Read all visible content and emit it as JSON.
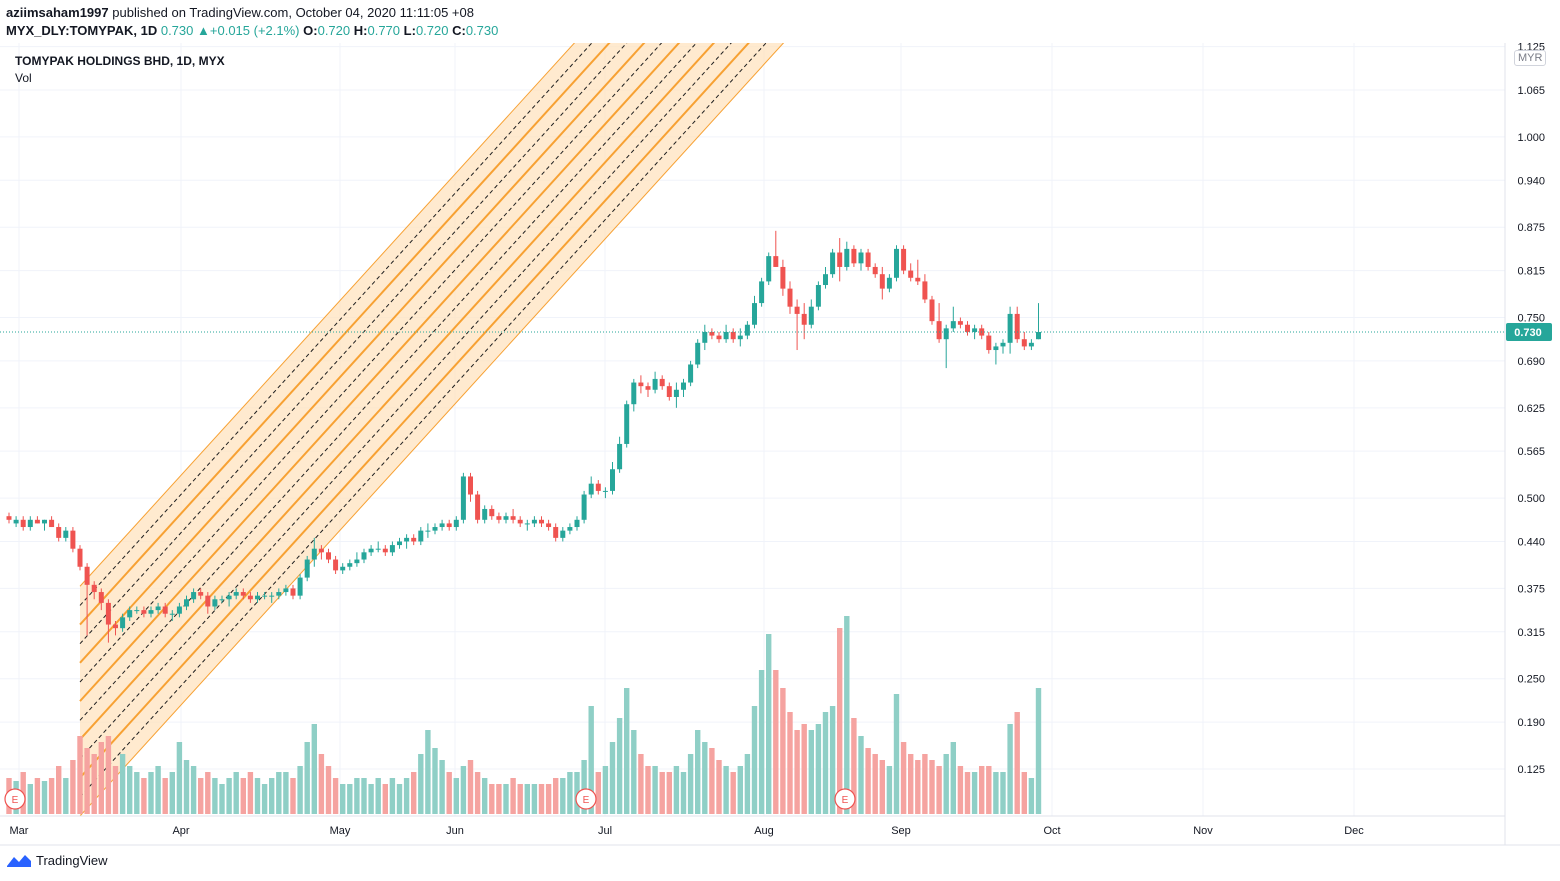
{
  "header": {
    "author": "aziimsaham1997",
    "published_text": "published on TradingView.com, October 04, 2020 11:11:05 +08",
    "symbol": "MYX_DLY:TOMYPAK, 1D",
    "last": "0.730",
    "change": "+0.015 (+2.1%)",
    "o_label": "O:",
    "o_value": "0.720",
    "h_label": "H:",
    "h_value": "0.770",
    "l_label": "L:",
    "l_value": "0.720",
    "c_label": "C:",
    "c_value": "0.730"
  },
  "legend": {
    "title": "TOMYPAK HOLDINGS BHD, 1D, MYX",
    "volume_label": "Vol"
  },
  "currency": "MYR",
  "footer": {
    "brand": "TradingView"
  },
  "colors": {
    "up": "#26a69a",
    "down": "#ef5350",
    "vol_up": "#8fcfc6",
    "vol_down": "#f5a3a0",
    "channel_fill": "#ffe3bf",
    "channel_line": "#f7a133",
    "dashed": "#1f1f1f",
    "price_tag": "#26a69a"
  },
  "chart_data": {
    "type": "candlestick",
    "title": "TOMYPAK HOLDINGS BHD, 1D, MYX",
    "y_ticks": [
      "1.125",
      "1.065",
      "1.000",
      "0.940",
      "0.875",
      "0.815",
      "0.750",
      "0.690",
      "0.625",
      "0.565",
      "0.500",
      "0.440",
      "0.375",
      "0.315",
      "0.250",
      "0.190",
      "0.125"
    ],
    "x_ticks": [
      "Mar",
      "Apr",
      "May",
      "Jun",
      "Jul",
      "Aug",
      "Sep",
      "Oct",
      "Nov",
      "Dec"
    ],
    "ylim": [
      0.06,
      1.13
    ],
    "last_price": 0.73,
    "last_price_label": "0.730",
    "earnings_marker": "E",
    "earnings_markers": [
      2,
      82,
      120
    ],
    "channel": {
      "start_index": 10,
      "start_price": 0.06,
      "slope": 0.0108,
      "offsets": [
        0.0,
        0.0265,
        0.053,
        0.0795,
        0.106,
        0.1325,
        0.159,
        0.1855,
        0.212,
        0.2385,
        0.265,
        0.2915,
        0.318
      ],
      "line_styles": [
        "edge",
        "dash",
        "solid",
        "dash",
        "solid",
        "dash",
        "solid",
        "dash",
        "solid",
        "dash",
        "solid",
        "dash",
        "edge"
      ]
    },
    "candles": [
      {
        "o": 0.475,
        "h": 0.48,
        "l": 0.465,
        "c": 0.47,
        "v": 0.06
      },
      {
        "o": 0.465,
        "h": 0.475,
        "l": 0.46,
        "c": 0.47,
        "v": 0.055
      },
      {
        "o": 0.47,
        "h": 0.475,
        "l": 0.455,
        "c": 0.46,
        "v": 0.07
      },
      {
        "o": 0.46,
        "h": 0.475,
        "l": 0.455,
        "c": 0.47,
        "v": 0.05
      },
      {
        "o": 0.47,
        "h": 0.475,
        "l": 0.465,
        "c": 0.465,
        "v": 0.06
      },
      {
        "o": 0.465,
        "h": 0.47,
        "l": 0.455,
        "c": 0.47,
        "v": 0.055
      },
      {
        "o": 0.47,
        "h": 0.475,
        "l": 0.46,
        "c": 0.46,
        "v": 0.06
      },
      {
        "o": 0.46,
        "h": 0.465,
        "l": 0.44,
        "c": 0.445,
        "v": 0.08
      },
      {
        "o": 0.445,
        "h": 0.46,
        "l": 0.44,
        "c": 0.455,
        "v": 0.06
      },
      {
        "o": 0.455,
        "h": 0.46,
        "l": 0.425,
        "c": 0.43,
        "v": 0.09
      },
      {
        "o": 0.43,
        "h": 0.435,
        "l": 0.4,
        "c": 0.405,
        "v": 0.13
      },
      {
        "o": 0.405,
        "h": 0.41,
        "l": 0.31,
        "c": 0.38,
        "v": 0.11
      },
      {
        "o": 0.38,
        "h": 0.385,
        "l": 0.36,
        "c": 0.37,
        "v": 0.1
      },
      {
        "o": 0.37,
        "h": 0.375,
        "l": 0.345,
        "c": 0.355,
        "v": 0.12
      },
      {
        "o": 0.355,
        "h": 0.36,
        "l": 0.3,
        "c": 0.325,
        "v": 0.13
      },
      {
        "o": 0.325,
        "h": 0.33,
        "l": 0.31,
        "c": 0.32,
        "v": 0.08
      },
      {
        "o": 0.32,
        "h": 0.34,
        "l": 0.315,
        "c": 0.335,
        "v": 0.1
      },
      {
        "o": 0.335,
        "h": 0.35,
        "l": 0.33,
        "c": 0.345,
        "v": 0.08
      },
      {
        "o": 0.345,
        "h": 0.35,
        "l": 0.34,
        "c": 0.345,
        "v": 0.07
      },
      {
        "o": 0.345,
        "h": 0.35,
        "l": 0.335,
        "c": 0.34,
        "v": 0.06
      },
      {
        "o": 0.34,
        "h": 0.35,
        "l": 0.335,
        "c": 0.345,
        "v": 0.07
      },
      {
        "o": 0.345,
        "h": 0.355,
        "l": 0.34,
        "c": 0.35,
        "v": 0.08
      },
      {
        "o": 0.35,
        "h": 0.355,
        "l": 0.335,
        "c": 0.34,
        "v": 0.06
      },
      {
        "o": 0.34,
        "h": 0.345,
        "l": 0.33,
        "c": 0.34,
        "v": 0.07
      },
      {
        "o": 0.34,
        "h": 0.355,
        "l": 0.335,
        "c": 0.35,
        "v": 0.12
      },
      {
        "o": 0.35,
        "h": 0.365,
        "l": 0.345,
        "c": 0.36,
        "v": 0.09
      },
      {
        "o": 0.36,
        "h": 0.375,
        "l": 0.355,
        "c": 0.37,
        "v": 0.08
      },
      {
        "o": 0.37,
        "h": 0.375,
        "l": 0.36,
        "c": 0.365,
        "v": 0.06
      },
      {
        "o": 0.365,
        "h": 0.37,
        "l": 0.34,
        "c": 0.35,
        "v": 0.07
      },
      {
        "o": 0.35,
        "h": 0.365,
        "l": 0.345,
        "c": 0.36,
        "v": 0.06
      },
      {
        "o": 0.36,
        "h": 0.365,
        "l": 0.355,
        "c": 0.36,
        "v": 0.05
      },
      {
        "o": 0.36,
        "h": 0.37,
        "l": 0.35,
        "c": 0.365,
        "v": 0.06
      },
      {
        "o": 0.365,
        "h": 0.375,
        "l": 0.36,
        "c": 0.37,
        "v": 0.07
      },
      {
        "o": 0.37,
        "h": 0.375,
        "l": 0.36,
        "c": 0.365,
        "v": 0.06
      },
      {
        "o": 0.365,
        "h": 0.37,
        "l": 0.355,
        "c": 0.36,
        "v": 0.07
      },
      {
        "o": 0.36,
        "h": 0.37,
        "l": 0.355,
        "c": 0.365,
        "v": 0.06
      },
      {
        "o": 0.365,
        "h": 0.37,
        "l": 0.36,
        "c": 0.365,
        "v": 0.05
      },
      {
        "o": 0.365,
        "h": 0.37,
        "l": 0.355,
        "c": 0.365,
        "v": 0.06
      },
      {
        "o": 0.365,
        "h": 0.375,
        "l": 0.36,
        "c": 0.37,
        "v": 0.07
      },
      {
        "o": 0.37,
        "h": 0.38,
        "l": 0.365,
        "c": 0.375,
        "v": 0.07
      },
      {
        "o": 0.375,
        "h": 0.38,
        "l": 0.36,
        "c": 0.365,
        "v": 0.06
      },
      {
        "o": 0.365,
        "h": 0.395,
        "l": 0.36,
        "c": 0.39,
        "v": 0.08
      },
      {
        "o": 0.39,
        "h": 0.42,
        "l": 0.385,
        "c": 0.415,
        "v": 0.12
      },
      {
        "o": 0.415,
        "h": 0.445,
        "l": 0.405,
        "c": 0.43,
        "v": 0.15
      },
      {
        "o": 0.43,
        "h": 0.435,
        "l": 0.415,
        "c": 0.425,
        "v": 0.1
      },
      {
        "o": 0.425,
        "h": 0.43,
        "l": 0.41,
        "c": 0.415,
        "v": 0.08
      },
      {
        "o": 0.415,
        "h": 0.42,
        "l": 0.395,
        "c": 0.4,
        "v": 0.06
      },
      {
        "o": 0.4,
        "h": 0.41,
        "l": 0.395,
        "c": 0.405,
        "v": 0.05
      },
      {
        "o": 0.405,
        "h": 0.415,
        "l": 0.4,
        "c": 0.41,
        "v": 0.05
      },
      {
        "o": 0.41,
        "h": 0.425,
        "l": 0.405,
        "c": 0.415,
        "v": 0.06
      },
      {
        "o": 0.415,
        "h": 0.43,
        "l": 0.41,
        "c": 0.425,
        "v": 0.06
      },
      {
        "o": 0.425,
        "h": 0.435,
        "l": 0.42,
        "c": 0.43,
        "v": 0.05
      },
      {
        "o": 0.43,
        "h": 0.44,
        "l": 0.425,
        "c": 0.43,
        "v": 0.06
      },
      {
        "o": 0.43,
        "h": 0.435,
        "l": 0.42,
        "c": 0.425,
        "v": 0.05
      },
      {
        "o": 0.425,
        "h": 0.44,
        "l": 0.42,
        "c": 0.435,
        "v": 0.06
      },
      {
        "o": 0.435,
        "h": 0.445,
        "l": 0.43,
        "c": 0.44,
        "v": 0.05
      },
      {
        "o": 0.44,
        "h": 0.45,
        "l": 0.43,
        "c": 0.445,
        "v": 0.06
      },
      {
        "o": 0.445,
        "h": 0.45,
        "l": 0.435,
        "c": 0.44,
        "v": 0.07
      },
      {
        "o": 0.44,
        "h": 0.46,
        "l": 0.435,
        "c": 0.455,
        "v": 0.1
      },
      {
        "o": 0.455,
        "h": 0.465,
        "l": 0.445,
        "c": 0.455,
        "v": 0.14
      },
      {
        "o": 0.455,
        "h": 0.465,
        "l": 0.45,
        "c": 0.46,
        "v": 0.11
      },
      {
        "o": 0.46,
        "h": 0.47,
        "l": 0.455,
        "c": 0.465,
        "v": 0.09
      },
      {
        "o": 0.465,
        "h": 0.47,
        "l": 0.455,
        "c": 0.46,
        "v": 0.07
      },
      {
        "o": 0.46,
        "h": 0.475,
        "l": 0.455,
        "c": 0.47,
        "v": 0.06
      },
      {
        "o": 0.47,
        "h": 0.535,
        "l": 0.465,
        "c": 0.53,
        "v": 0.08
      },
      {
        "o": 0.53,
        "h": 0.535,
        "l": 0.495,
        "c": 0.505,
        "v": 0.09
      },
      {
        "o": 0.505,
        "h": 0.51,
        "l": 0.465,
        "c": 0.47,
        "v": 0.07
      },
      {
        "o": 0.47,
        "h": 0.49,
        "l": 0.465,
        "c": 0.485,
        "v": 0.06
      },
      {
        "o": 0.485,
        "h": 0.49,
        "l": 0.47,
        "c": 0.475,
        "v": 0.05
      },
      {
        "o": 0.475,
        "h": 0.48,
        "l": 0.465,
        "c": 0.47,
        "v": 0.05
      },
      {
        "o": 0.47,
        "h": 0.48,
        "l": 0.465,
        "c": 0.475,
        "v": 0.05
      },
      {
        "o": 0.475,
        "h": 0.485,
        "l": 0.465,
        "c": 0.47,
        "v": 0.06
      },
      {
        "o": 0.47,
        "h": 0.475,
        "l": 0.46,
        "c": 0.465,
        "v": 0.05
      },
      {
        "o": 0.465,
        "h": 0.47,
        "l": 0.455,
        "c": 0.465,
        "v": 0.05
      },
      {
        "o": 0.465,
        "h": 0.475,
        "l": 0.46,
        "c": 0.47,
        "v": 0.05
      },
      {
        "o": 0.47,
        "h": 0.475,
        "l": 0.46,
        "c": 0.465,
        "v": 0.05
      },
      {
        "o": 0.465,
        "h": 0.47,
        "l": 0.455,
        "c": 0.46,
        "v": 0.05
      },
      {
        "o": 0.46,
        "h": 0.465,
        "l": 0.44,
        "c": 0.445,
        "v": 0.06
      },
      {
        "o": 0.445,
        "h": 0.46,
        "l": 0.44,
        "c": 0.455,
        "v": 0.06
      },
      {
        "o": 0.455,
        "h": 0.465,
        "l": 0.45,
        "c": 0.46,
        "v": 0.07
      },
      {
        "o": 0.46,
        "h": 0.475,
        "l": 0.455,
        "c": 0.47,
        "v": 0.07
      },
      {
        "o": 0.47,
        "h": 0.51,
        "l": 0.465,
        "c": 0.505,
        "v": 0.09
      },
      {
        "o": 0.505,
        "h": 0.53,
        "l": 0.5,
        "c": 0.52,
        "v": 0.18
      },
      {
        "o": 0.52,
        "h": 0.525,
        "l": 0.505,
        "c": 0.51,
        "v": 0.07
      },
      {
        "o": 0.51,
        "h": 0.515,
        "l": 0.5,
        "c": 0.51,
        "v": 0.08
      },
      {
        "o": 0.51,
        "h": 0.55,
        "l": 0.505,
        "c": 0.54,
        "v": 0.12
      },
      {
        "o": 0.54,
        "h": 0.585,
        "l": 0.535,
        "c": 0.575,
        "v": 0.16
      },
      {
        "o": 0.575,
        "h": 0.635,
        "l": 0.57,
        "c": 0.63,
        "v": 0.21
      },
      {
        "o": 0.63,
        "h": 0.665,
        "l": 0.62,
        "c": 0.66,
        "v": 0.14
      },
      {
        "o": 0.66,
        "h": 0.67,
        "l": 0.645,
        "c": 0.655,
        "v": 0.1
      },
      {
        "o": 0.655,
        "h": 0.66,
        "l": 0.64,
        "c": 0.65,
        "v": 0.08
      },
      {
        "o": 0.65,
        "h": 0.675,
        "l": 0.645,
        "c": 0.665,
        "v": 0.08
      },
      {
        "o": 0.665,
        "h": 0.67,
        "l": 0.65,
        "c": 0.655,
        "v": 0.07
      },
      {
        "o": 0.655,
        "h": 0.66,
        "l": 0.635,
        "c": 0.64,
        "v": 0.07
      },
      {
        "o": 0.64,
        "h": 0.66,
        "l": 0.625,
        "c": 0.65,
        "v": 0.08
      },
      {
        "o": 0.65,
        "h": 0.665,
        "l": 0.64,
        "c": 0.66,
        "v": 0.07
      },
      {
        "o": 0.66,
        "h": 0.69,
        "l": 0.655,
        "c": 0.685,
        "v": 0.1
      },
      {
        "o": 0.685,
        "h": 0.72,
        "l": 0.68,
        "c": 0.715,
        "v": 0.14
      },
      {
        "o": 0.715,
        "h": 0.74,
        "l": 0.705,
        "c": 0.73,
        "v": 0.12
      },
      {
        "o": 0.73,
        "h": 0.735,
        "l": 0.72,
        "c": 0.725,
        "v": 0.11
      },
      {
        "o": 0.725,
        "h": 0.73,
        "l": 0.715,
        "c": 0.72,
        "v": 0.09
      },
      {
        "o": 0.72,
        "h": 0.74,
        "l": 0.715,
        "c": 0.73,
        "v": 0.08
      },
      {
        "o": 0.73,
        "h": 0.735,
        "l": 0.715,
        "c": 0.72,
        "v": 0.07
      },
      {
        "o": 0.72,
        "h": 0.735,
        "l": 0.71,
        "c": 0.725,
        "v": 0.08
      },
      {
        "o": 0.725,
        "h": 0.745,
        "l": 0.72,
        "c": 0.74,
        "v": 0.1
      },
      {
        "o": 0.74,
        "h": 0.78,
        "l": 0.735,
        "c": 0.77,
        "v": 0.18
      },
      {
        "o": 0.77,
        "h": 0.805,
        "l": 0.765,
        "c": 0.8,
        "v": 0.24
      },
      {
        "o": 0.8,
        "h": 0.84,
        "l": 0.795,
        "c": 0.835,
        "v": 0.3
      },
      {
        "o": 0.835,
        "h": 0.87,
        "l": 0.82,
        "c": 0.82,
        "v": 0.24
      },
      {
        "o": 0.82,
        "h": 0.83,
        "l": 0.78,
        "c": 0.79,
        "v": 0.21
      },
      {
        "o": 0.79,
        "h": 0.8,
        "l": 0.755,
        "c": 0.765,
        "v": 0.17
      },
      {
        "o": 0.765,
        "h": 0.775,
        "l": 0.705,
        "c": 0.755,
        "v": 0.14
      },
      {
        "o": 0.755,
        "h": 0.77,
        "l": 0.72,
        "c": 0.74,
        "v": 0.15
      },
      {
        "o": 0.74,
        "h": 0.775,
        "l": 0.735,
        "c": 0.765,
        "v": 0.14
      },
      {
        "o": 0.765,
        "h": 0.8,
        "l": 0.76,
        "c": 0.795,
        "v": 0.15
      },
      {
        "o": 0.795,
        "h": 0.82,
        "l": 0.79,
        "c": 0.81,
        "v": 0.17
      },
      {
        "o": 0.81,
        "h": 0.845,
        "l": 0.805,
        "c": 0.84,
        "v": 0.18
      },
      {
        "o": 0.84,
        "h": 0.86,
        "l": 0.8,
        "c": 0.82,
        "v": 0.31
      },
      {
        "o": 0.82,
        "h": 0.855,
        "l": 0.815,
        "c": 0.845,
        "v": 0.33
      },
      {
        "o": 0.845,
        "h": 0.85,
        "l": 0.82,
        "c": 0.825,
        "v": 0.16
      },
      {
        "o": 0.825,
        "h": 0.845,
        "l": 0.815,
        "c": 0.84,
        "v": 0.13
      },
      {
        "o": 0.84,
        "h": 0.845,
        "l": 0.815,
        "c": 0.82,
        "v": 0.11
      },
      {
        "o": 0.82,
        "h": 0.825,
        "l": 0.805,
        "c": 0.81,
        "v": 0.1
      },
      {
        "o": 0.81,
        "h": 0.82,
        "l": 0.775,
        "c": 0.79,
        "v": 0.09
      },
      {
        "o": 0.79,
        "h": 0.81,
        "l": 0.785,
        "c": 0.805,
        "v": 0.08
      },
      {
        "o": 0.805,
        "h": 0.85,
        "l": 0.8,
        "c": 0.845,
        "v": 0.2
      },
      {
        "o": 0.845,
        "h": 0.85,
        "l": 0.81,
        "c": 0.815,
        "v": 0.12
      },
      {
        "o": 0.815,
        "h": 0.825,
        "l": 0.8,
        "c": 0.805,
        "v": 0.1
      },
      {
        "o": 0.805,
        "h": 0.83,
        "l": 0.795,
        "c": 0.8,
        "v": 0.09
      },
      {
        "o": 0.8,
        "h": 0.81,
        "l": 0.77,
        "c": 0.775,
        "v": 0.1
      },
      {
        "o": 0.775,
        "h": 0.78,
        "l": 0.74,
        "c": 0.745,
        "v": 0.09
      },
      {
        "o": 0.745,
        "h": 0.77,
        "l": 0.715,
        "c": 0.72,
        "v": 0.08
      },
      {
        "o": 0.72,
        "h": 0.74,
        "l": 0.68,
        "c": 0.735,
        "v": 0.1
      },
      {
        "o": 0.735,
        "h": 0.765,
        "l": 0.73,
        "c": 0.745,
        "v": 0.12
      },
      {
        "o": 0.745,
        "h": 0.75,
        "l": 0.735,
        "c": 0.74,
        "v": 0.08
      },
      {
        "o": 0.74,
        "h": 0.745,
        "l": 0.725,
        "c": 0.73,
        "v": 0.07
      },
      {
        "o": 0.73,
        "h": 0.74,
        "l": 0.72,
        "c": 0.735,
        "v": 0.07
      },
      {
        "o": 0.735,
        "h": 0.74,
        "l": 0.72,
        "c": 0.725,
        "v": 0.08
      },
      {
        "o": 0.725,
        "h": 0.73,
        "l": 0.7,
        "c": 0.705,
        "v": 0.08
      },
      {
        "o": 0.705,
        "h": 0.715,
        "l": 0.685,
        "c": 0.71,
        "v": 0.07
      },
      {
        "o": 0.71,
        "h": 0.72,
        "l": 0.7,
        "c": 0.715,
        "v": 0.07
      },
      {
        "o": 0.715,
        "h": 0.765,
        "l": 0.7,
        "c": 0.755,
        "v": 0.15
      },
      {
        "o": 0.755,
        "h": 0.765,
        "l": 0.715,
        "c": 0.72,
        "v": 0.17
      },
      {
        "o": 0.72,
        "h": 0.73,
        "l": 0.705,
        "c": 0.71,
        "v": 0.07
      },
      {
        "o": 0.71,
        "h": 0.72,
        "l": 0.705,
        "c": 0.715,
        "v": 0.06
      },
      {
        "o": 0.72,
        "h": 0.77,
        "l": 0.72,
        "c": 0.73,
        "v": 0.21
      }
    ]
  }
}
